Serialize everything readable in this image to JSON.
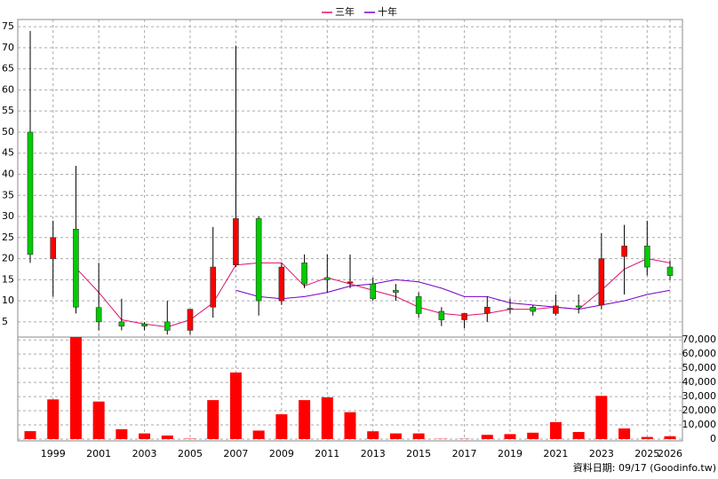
{
  "chart_data": {
    "type": "candlestick",
    "categories": [
      null,
      "1999",
      null,
      "2001",
      null,
      "2003",
      null,
      "2005",
      null,
      "2007",
      null,
      "2009",
      null,
      "2011",
      null,
      "2013",
      null,
      "2015",
      null,
      "2017",
      null,
      "2019",
      null,
      "2021",
      null,
      "2023",
      null,
      "2025",
      "2026"
    ],
    "open": [
      50,
      20,
      27,
      8.4,
      5,
      4.5,
      5,
      3,
      8.5,
      18.5,
      29.5,
      10,
      19,
      15.5,
      14.2,
      14,
      12.5,
      11,
      7.5,
      5.5,
      7,
      8,
      8.5,
      7,
      8.8,
      9,
      20.5,
      23,
      18
    ],
    "high": [
      74,
      29,
      42,
      19,
      10.5,
      5,
      10,
      8,
      27.5,
      70.5,
      30,
      19,
      21,
      21,
      21,
      15.5,
      14,
      12,
      8.5,
      7,
      11,
      10.5,
      9,
      11.5,
      11.5,
      26,
      28,
      29,
      19.5
    ],
    "low": [
      19,
      11,
      7,
      3,
      3,
      3,
      2,
      2,
      6,
      18,
      6.5,
      9,
      13,
      12,
      13,
      10,
      10,
      6,
      4,
      3.5,
      5,
      7,
      6.5,
      6.5,
      7,
      8,
      11.5,
      16,
      15
    ],
    "close": [
      21,
      25,
      8.5,
      5,
      4,
      4,
      3,
      8,
      18,
      29.5,
      10,
      18,
      14,
      15,
      14.5,
      10.5,
      12,
      7,
      5.5,
      7,
      8.5,
      8.2,
      7.5,
      8.8,
      8.5,
      20,
      23,
      18,
      16
    ],
    "up_color": "#ff0000",
    "down_color": "#00cc00",
    "series": [
      {
        "name": "三年",
        "color": "#e0106a",
        "values": [
          null,
          null,
          17.8,
          12,
          5.5,
          4.5,
          3.8,
          5.5,
          9.5,
          18.5,
          19,
          19,
          13.5,
          15.5,
          14,
          12.5,
          11,
          8.5,
          7,
          6.5,
          7,
          8,
          8,
          8.5,
          8,
          12.5,
          17.5,
          20,
          19
        ]
      },
      {
        "name": "十年",
        "color": "#7700cc",
        "values": [
          null,
          null,
          null,
          null,
          null,
          null,
          null,
          null,
          null,
          12.5,
          11,
          10.5,
          11,
          12,
          13.5,
          14,
          15,
          14.5,
          13,
          11,
          11,
          9.5,
          9,
          8.5,
          8,
          9,
          10,
          11.5,
          12.5
        ]
      }
    ],
    "ylim": [
      1.4,
      76.7
    ],
    "yticks": [
      5,
      10,
      15,
      20,
      25,
      30,
      35,
      40,
      45,
      50,
      55,
      60,
      65,
      70,
      75
    ],
    "grid": true,
    "volume": {
      "color": "#ff0000",
      "values": [
        5600,
        28000,
        72000,
        26500,
        7000,
        4000,
        2500,
        300,
        27500,
        47000,
        6000,
        17500,
        27500,
        29500,
        19000,
        5500,
        4000,
        4000,
        200,
        200,
        3000,
        3500,
        4500,
        12000,
        5000,
        30500,
        7500,
        1500,
        2000
      ],
      "ylim": [
        0,
        72000
      ],
      "yticks": [
        0,
        {
          "value": 10000,
          "label": "10,000"
        },
        {
          "value": 20000,
          "label": "20,000"
        },
        {
          "value": 30000,
          "label": "30,000"
        },
        {
          "value": 40000,
          "label": "40,000"
        },
        {
          "value": 50000,
          "label": "50,000"
        },
        {
          "value": 60000,
          "label": "60,000"
        },
        {
          "value": 70000,
          "label": "70,000"
        }
      ]
    },
    "footer": "資料日期: 09/17 (Goodinfo.tw)"
  }
}
